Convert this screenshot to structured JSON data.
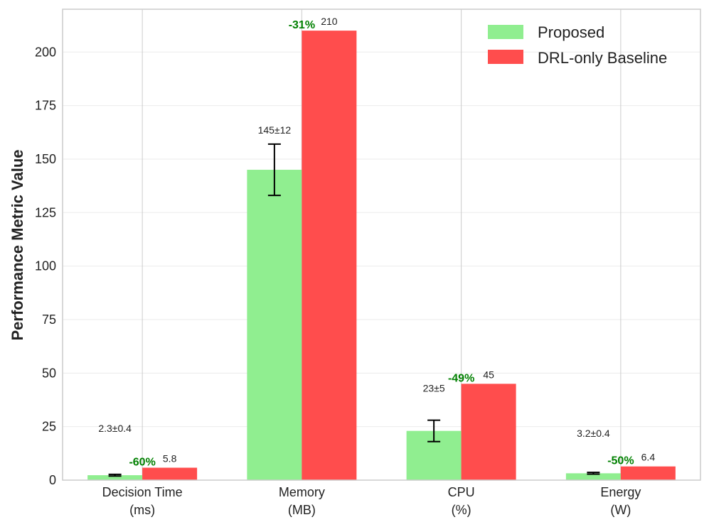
{
  "chart_data": {
    "type": "bar",
    "categories": [
      [
        "Decision Time",
        "(ms)"
      ],
      [
        "Memory",
        "(MB)"
      ],
      [
        "CPU",
        "(%)"
      ],
      [
        "Energy",
        "(W)"
      ]
    ],
    "series": [
      {
        "name": "Proposed",
        "values": [
          2.3,
          145,
          23,
          3.2
        ],
        "errors": [
          0.4,
          12,
          5,
          0.4
        ],
        "labels": [
          "2.3±0.4",
          "145±12",
          "23±5",
          "3.2±0.4"
        ],
        "color": "#90ee90"
      },
      {
        "name": "DRL-only Baseline",
        "values": [
          5.8,
          210,
          45,
          6.4
        ],
        "labels": [
          "5.8",
          "210",
          "45",
          "6.4"
        ],
        "color": "#ff4d4d"
      }
    ],
    "improvements": [
      "-60%",
      "-31%",
      "-49%",
      "-50%"
    ],
    "improvement_color": "#008000",
    "xlabel": "",
    "ylabel": "Performance Metric Value",
    "ylim": [
      0,
      220
    ],
    "yticks": [
      0,
      25,
      50,
      75,
      100,
      125,
      150,
      175,
      200
    ],
    "grid": true,
    "legend_position": "top-right"
  }
}
